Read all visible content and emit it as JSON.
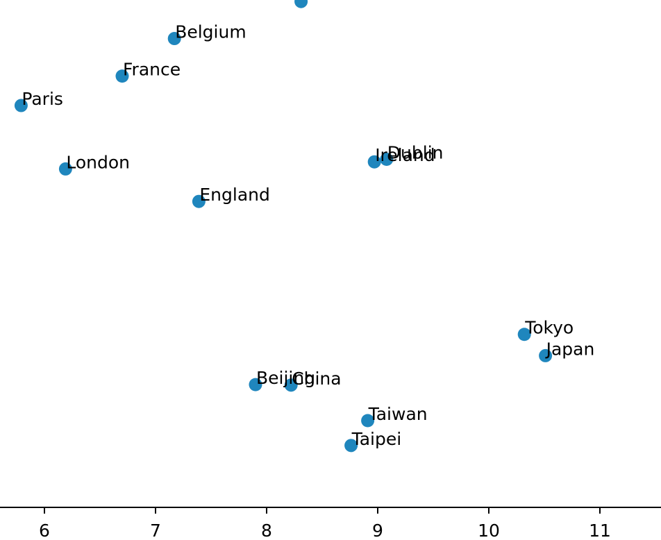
{
  "chart_data": {
    "type": "scatter",
    "title": "",
    "xlabel": "",
    "ylabel": "",
    "xlim": [
      5.6,
      11.55
    ],
    "ylim": [
      0,
      1
    ],
    "x_ticks": [
      6,
      7,
      8,
      9,
      10,
      11
    ],
    "x_tick_labels": [
      "6",
      "7",
      "8",
      "9",
      "10",
      "11"
    ],
    "grid": false,
    "legend": "none",
    "marker_color": "#1f86bd",
    "points": [
      {
        "label": "",
        "x": 8.31,
        "y": 0.997
      },
      {
        "label": "Belgium",
        "x": 7.17,
        "y": 0.924
      },
      {
        "label": "France",
        "x": 6.7,
        "y": 0.85
      },
      {
        "label": "Paris",
        "x": 5.79,
        "y": 0.792
      },
      {
        "label": "Dublin",
        "x": 9.08,
        "y": 0.686
      },
      {
        "label": "Ireland",
        "x": 8.97,
        "y": 0.681
      },
      {
        "label": "London",
        "x": 6.19,
        "y": 0.667
      },
      {
        "label": "England",
        "x": 7.39,
        "y": 0.603
      },
      {
        "label": "Tokyo",
        "x": 10.32,
        "y": 0.341
      },
      {
        "label": "Japan",
        "x": 10.51,
        "y": 0.299
      },
      {
        "label": "Beijing",
        "x": 7.9,
        "y": 0.242
      },
      {
        "label": "China",
        "x": 8.22,
        "y": 0.241
      },
      {
        "label": "Taiwan",
        "x": 8.91,
        "y": 0.171
      },
      {
        "label": "Taipei",
        "x": 8.76,
        "y": 0.122
      }
    ]
  }
}
